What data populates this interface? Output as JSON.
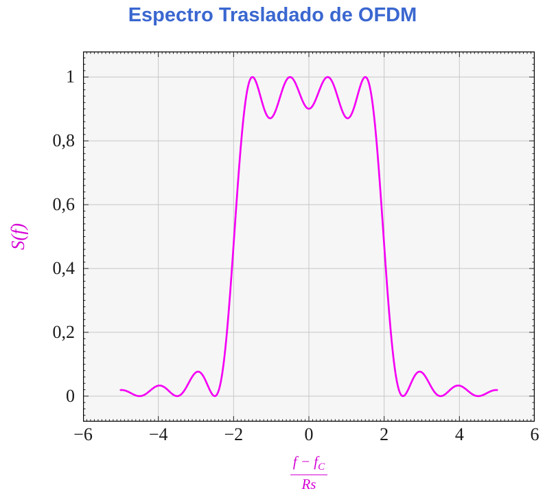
{
  "figure": {
    "title": "Espectro Trasladado de OFDM"
  },
  "colors": {
    "title": "#3A67D0",
    "curve": "#F400F4",
    "axis_labels": "#D500D5",
    "grid": "#c7c7c7",
    "plot_bg": "#f6f6f6",
    "frame": "#000000",
    "tick_mark": "#222222",
    "tick_text": "#1a1a1a"
  },
  "labels": {
    "ylabel": "S(f)",
    "xlabel_numerator_main": "f − f",
    "xlabel_numerator_sub": "C",
    "xlabel_denominator": "Rs"
  },
  "chart_data": {
    "type": "line",
    "title": "Espectro Trasladado de OFDM",
    "xlabel": "(f − f_C)/Rs",
    "ylabel": "S(f)",
    "xlim": [
      -6,
      6
    ],
    "ylim": [
      -0.08,
      1.08
    ],
    "grid": true,
    "legend": "none",
    "x_ticks": [
      -6,
      -4,
      -2,
      0,
      2,
      4,
      6
    ],
    "x_tick_labels": [
      "−6",
      "−4",
      "−2",
      "0",
      "2",
      "4",
      "6"
    ],
    "y_ticks": [
      0,
      0.2,
      0.4,
      0.6,
      0.8,
      1
    ],
    "y_tick_labels": [
      "0",
      "0,2",
      "0,4",
      "0,6",
      "0,8",
      "1"
    ],
    "x_minor_step": 0.1,
    "y_minor_step": 0.02,
    "series": [
      {
        "name": "S(f)",
        "color": "#F400F4",
        "model": "sum_of_sinc_squared",
        "subcarriers": [
          -1.5,
          -0.5,
          0.5,
          1.5
        ],
        "sample_range": [
          -5,
          5
        ],
        "sample_step": 0.02,
        "key_points": [
          {
            "x": -5,
            "y": 0.019
          },
          {
            "x": -4.5,
            "y": 0
          },
          {
            "x": -4,
            "y": 0.033
          },
          {
            "x": -3.5,
            "y": 0
          },
          {
            "x": -3,
            "y": 0.075
          },
          {
            "x": -2.5,
            "y": 0
          },
          {
            "x": -2,
            "y": 0.475
          },
          {
            "x": -1.5,
            "y": 1.0
          },
          {
            "x": -1,
            "y": 0.872
          },
          {
            "x": -0.5,
            "y": 1.0
          },
          {
            "x": 0,
            "y": 0.901
          },
          {
            "x": 0.5,
            "y": 1.0
          },
          {
            "x": 1,
            "y": 0.872
          },
          {
            "x": 1.5,
            "y": 1.0
          },
          {
            "x": 2,
            "y": 0.475
          },
          {
            "x": 2.5,
            "y": 0
          },
          {
            "x": 3,
            "y": 0.075
          },
          {
            "x": 3.5,
            "y": 0
          },
          {
            "x": 4,
            "y": 0.033
          },
          {
            "x": 4.5,
            "y": 0
          },
          {
            "x": 5,
            "y": 0.019
          }
        ]
      }
    ]
  }
}
